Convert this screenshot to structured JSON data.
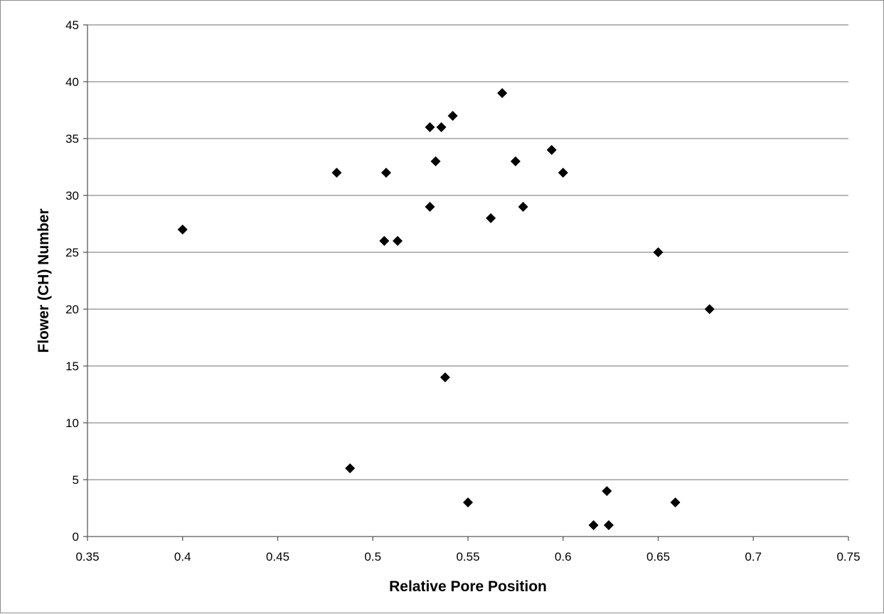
{
  "chart_data": {
    "type": "scatter",
    "title": "",
    "xlabel": "Relative Pore Position",
    "ylabel": "Flower (CH) Number",
    "xlim": [
      0.35,
      0.75
    ],
    "ylim": [
      0,
      45
    ],
    "xticks": [
      0.35,
      0.4,
      0.45,
      0.5,
      0.55,
      0.6,
      0.65,
      0.7,
      0.75
    ],
    "xtick_labels": [
      "0.35",
      "0.4",
      "0.45",
      "0.5",
      "0.55",
      "0.6",
      "0.65",
      "0.7",
      "0.75"
    ],
    "yticks": [
      0,
      5,
      10,
      15,
      20,
      25,
      30,
      35,
      40,
      45
    ],
    "ytick_labels": [
      "0",
      "5",
      "10",
      "15",
      "20",
      "25",
      "30",
      "35",
      "40",
      "45"
    ],
    "grid": "horizontal",
    "legend": "none",
    "marker": "diamond",
    "marker_color": "#000000",
    "series": [
      {
        "points": [
          {
            "x": 0.4,
            "y": 27
          },
          {
            "x": 0.481,
            "y": 32
          },
          {
            "x": 0.488,
            "y": 6
          },
          {
            "x": 0.506,
            "y": 26
          },
          {
            "x": 0.507,
            "y": 32
          },
          {
            "x": 0.513,
            "y": 26
          },
          {
            "x": 0.53,
            "y": 36
          },
          {
            "x": 0.53,
            "y": 29
          },
          {
            "x": 0.533,
            "y": 33
          },
          {
            "x": 0.536,
            "y": 36
          },
          {
            "x": 0.538,
            "y": 14
          },
          {
            "x": 0.542,
            "y": 37
          },
          {
            "x": 0.55,
            "y": 3
          },
          {
            "x": 0.562,
            "y": 28
          },
          {
            "x": 0.568,
            "y": 39
          },
          {
            "x": 0.575,
            "y": 33
          },
          {
            "x": 0.579,
            "y": 29
          },
          {
            "x": 0.594,
            "y": 34
          },
          {
            "x": 0.6,
            "y": 32
          },
          {
            "x": 0.616,
            "y": 1
          },
          {
            "x": 0.623,
            "y": 4
          },
          {
            "x": 0.624,
            "y": 1
          },
          {
            "x": 0.65,
            "y": 25
          },
          {
            "x": 0.659,
            "y": 3
          },
          {
            "x": 0.677,
            "y": 20
          }
        ]
      }
    ]
  }
}
